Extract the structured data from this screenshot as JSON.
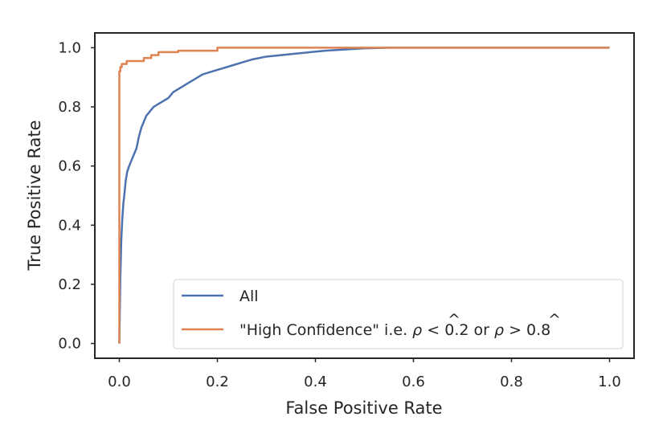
{
  "chart_data": {
    "type": "line",
    "title": "",
    "xlabel": "False Positive Rate",
    "ylabel": "True Positive Rate",
    "xlim": [
      -0.05,
      1.05
    ],
    "ylim": [
      -0.05,
      1.05
    ],
    "xticks": [
      0.0,
      0.2,
      0.4,
      0.6,
      0.8,
      1.0
    ],
    "yticks": [
      0.0,
      0.2,
      0.4,
      0.6,
      0.8,
      1.0
    ],
    "xtick_labels": [
      "0.0",
      "0.2",
      "0.4",
      "0.6",
      "0.8",
      "1.0"
    ],
    "ytick_labels": [
      "0.0",
      "0.2",
      "0.4",
      "0.6",
      "0.8",
      "1.0"
    ],
    "grid": false,
    "legend_position": "lower-right",
    "series": [
      {
        "name": "All",
        "color": "#4c72b0",
        "x": [
          0.0,
          0.002,
          0.004,
          0.006,
          0.008,
          0.01,
          0.013,
          0.016,
          0.02,
          0.025,
          0.03,
          0.035,
          0.04,
          0.045,
          0.05,
          0.055,
          0.06,
          0.065,
          0.07,
          0.08,
          0.09,
          0.1,
          0.11,
          0.12,
          0.13,
          0.14,
          0.15,
          0.17,
          0.19,
          0.21,
          0.23,
          0.25,
          0.27,
          0.3,
          0.33,
          0.36,
          0.39,
          0.42,
          0.45,
          0.48,
          0.5,
          0.53,
          0.55,
          0.6,
          0.7,
          0.8,
          0.9,
          1.0
        ],
        "y": [
          0.0,
          0.22,
          0.35,
          0.42,
          0.47,
          0.5,
          0.55,
          0.58,
          0.6,
          0.62,
          0.64,
          0.66,
          0.7,
          0.73,
          0.75,
          0.77,
          0.78,
          0.79,
          0.8,
          0.81,
          0.82,
          0.83,
          0.85,
          0.86,
          0.87,
          0.88,
          0.89,
          0.91,
          0.92,
          0.93,
          0.94,
          0.95,
          0.96,
          0.97,
          0.975,
          0.98,
          0.985,
          0.99,
          0.993,
          0.996,
          0.998,
          0.999,
          1.0,
          1.0,
          1.0,
          1.0,
          1.0,
          1.0
        ]
      },
      {
        "name": "\"High Confidence\" i.e. ρ̂ < 0.2 or ρ̂ > 0.8",
        "color": "#dd8452",
        "x": [
          0.0,
          0.0,
          0.002,
          0.002,
          0.005,
          0.005,
          0.015,
          0.015,
          0.05,
          0.05,
          0.065,
          0.065,
          0.08,
          0.08,
          0.12,
          0.12,
          0.2,
          0.2,
          1.0
        ],
        "y": [
          0.0,
          0.92,
          0.92,
          0.935,
          0.935,
          0.945,
          0.945,
          0.955,
          0.955,
          0.965,
          0.965,
          0.975,
          0.975,
          0.985,
          0.985,
          0.99,
          0.99,
          1.0,
          1.0
        ]
      }
    ]
  },
  "legend": {
    "all_label": "All",
    "high_conf_prefix": "\"High Confidence\" i.e. ",
    "high_conf_rho": "ρ",
    "high_conf_hat": "^",
    "high_conf_lt": " < 0.2 or ",
    "high_conf_gt": " > 0.8"
  }
}
